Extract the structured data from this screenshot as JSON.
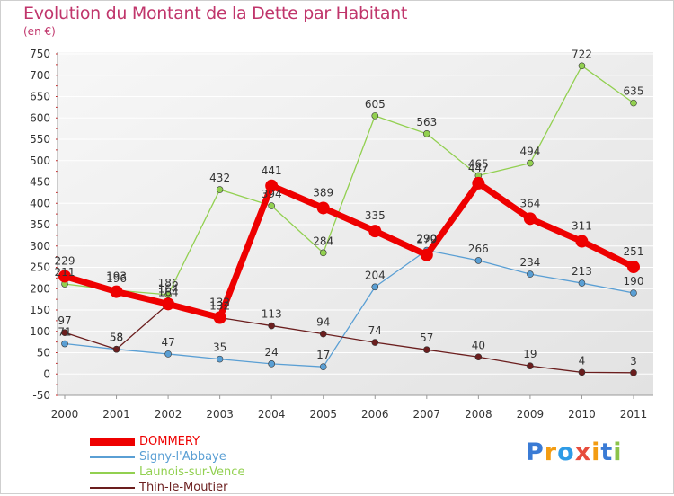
{
  "title": "Evolution du Montant de la Dette par Habitant",
  "unit": "(en €)",
  "logo": {
    "text": "Proxiti",
    "colors": [
      "#3a7bd5",
      "#f39c12",
      "#2e9be6",
      "#e74c3c",
      "#f39c12",
      "#3a7bd5",
      "#8bc34a"
    ]
  },
  "chart_data": {
    "type": "line",
    "categories": [
      "2000",
      "2001",
      "2002",
      "2003",
      "2004",
      "2005",
      "2006",
      "2007",
      "2008",
      "2009",
      "2010",
      "2011"
    ],
    "ylim": [
      -50,
      750
    ],
    "yticks": [
      -50,
      0,
      50,
      100,
      150,
      200,
      250,
      300,
      350,
      400,
      450,
      500,
      550,
      600,
      650,
      700,
      750
    ],
    "grid": true,
    "legend_position": "bottom-left",
    "series": [
      {
        "name": "DOMMERY",
        "color": "#ee0000",
        "values": [
          229,
          193,
          164,
          132,
          441,
          389,
          335,
          279,
          447,
          364,
          311,
          251
        ]
      },
      {
        "name": "Signy-l'Abbaye",
        "color": "#5a9fd4",
        "values": [
          71,
          58,
          47,
          35,
          24,
          17,
          204,
          290,
          266,
          234,
          213,
          190
        ]
      },
      {
        "name": "Launois-sur-Vence",
        "color": "#92d050",
        "values": [
          211,
          196,
          186,
          432,
          394,
          284,
          605,
          563,
          465,
          494,
          722,
          635
        ]
      },
      {
        "name": "Thin-le-Moutier",
        "color": "#6b1e1e",
        "values": [
          97,
          58,
          164,
          132,
          113,
          94,
          74,
          57,
          40,
          19,
          4,
          3
        ]
      }
    ]
  }
}
